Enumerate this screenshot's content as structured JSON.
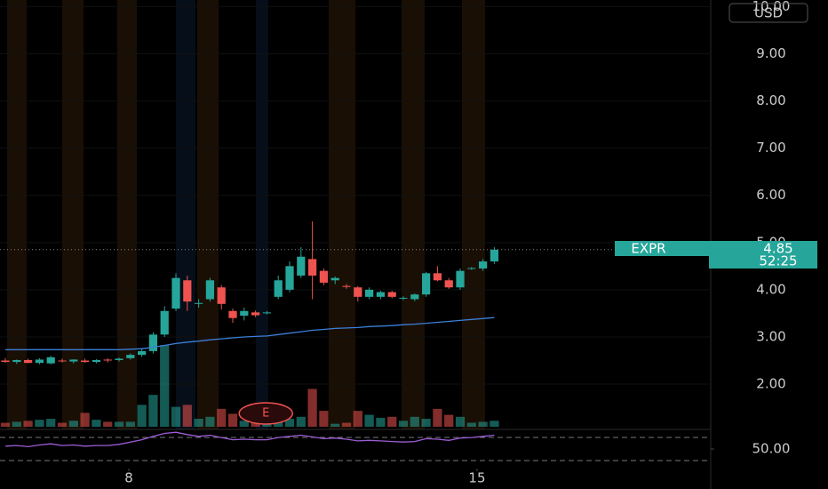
{
  "chart_data": {
    "type": "candlestick",
    "currency": "USD",
    "symbol": "EXPR",
    "last_price": 4.85,
    "countdown": "52:25",
    "event_marker": "E",
    "up_color": "#26a69a",
    "down_color": "#ef5350",
    "ma_color": "#3d7fd9",
    "rsi_color": "#9c5dd6",
    "ylim": [
      1.04,
      10.14
    ],
    "yticks": [
      {
        "value": 2,
        "label": "2.00"
      },
      {
        "value": 3,
        "label": "3.00"
      },
      {
        "value": 4,
        "label": "4.00"
      },
      {
        "value": 5,
        "label": "5.00"
      },
      {
        "value": 6,
        "label": "6.00"
      },
      {
        "value": 7,
        "label": "7.00"
      },
      {
        "value": 8,
        "label": "8.00"
      },
      {
        "value": 9,
        "label": "9.00"
      },
      {
        "value": 10,
        "label": "10.00"
      }
    ],
    "xlim": [
      -0.47,
      62.03
    ],
    "xticks": [
      {
        "value": 10.86,
        "label": "8"
      },
      {
        "value": 41.48,
        "label": "15"
      }
    ],
    "rsi_lim": [
      16,
      84
    ],
    "rsi_ticks": [
      {
        "value": 50,
        "label": "50.00"
      }
    ],
    "rsi_bands": [
      30,
      70
    ],
    "open": [
      2.5,
      2.47,
      2.51,
      2.45,
      2.44,
      2.5,
      2.48,
      2.5,
      2.47,
      2.52,
      2.51,
      2.55,
      2.62,
      2.7,
      3.05,
      3.6,
      4.2,
      3.7,
      3.8,
      4.05,
      3.55,
      3.45,
      3.52,
      3.5,
      3.85,
      4.0,
      4.3,
      4.65,
      4.4,
      4.2,
      4.08,
      4.05,
      3.85,
      3.85,
      3.95,
      3.82,
      3.8,
      3.9,
      4.35,
      4.2,
      4.05,
      4.45,
      4.45,
      4.6
    ],
    "high": [
      2.55,
      2.52,
      2.54,
      2.55,
      2.6,
      2.54,
      2.53,
      2.54,
      2.53,
      2.55,
      2.56,
      2.65,
      2.75,
      3.1,
      3.65,
      4.35,
      4.3,
      3.8,
      4.25,
      4.1,
      3.6,
      3.62,
      3.56,
      3.55,
      4.3,
      4.6,
      4.9,
      5.45,
      4.45,
      4.28,
      4.12,
      4.08,
      4.05,
      3.98,
      3.98,
      3.86,
      3.92,
      4.38,
      4.5,
      4.25,
      4.45,
      4.48,
      4.65,
      4.9
    ],
    "low": [
      2.45,
      2.43,
      2.44,
      2.42,
      2.42,
      2.46,
      2.44,
      2.45,
      2.44,
      2.46,
      2.48,
      2.52,
      2.58,
      2.65,
      3.0,
      3.55,
      3.55,
      3.62,
      3.75,
      3.58,
      3.3,
      3.35,
      3.42,
      3.48,
      3.8,
      3.95,
      4.25,
      3.8,
      4.1,
      4.12,
      4.02,
      3.75,
      3.8,
      3.8,
      3.82,
      3.78,
      3.76,
      3.85,
      4.18,
      4.02,
      4.0,
      4.42,
      4.4,
      4.55
    ],
    "close": [
      2.47,
      2.51,
      2.45,
      2.52,
      2.57,
      2.49,
      2.52,
      2.47,
      2.51,
      2.5,
      2.54,
      2.62,
      2.7,
      3.05,
      3.55,
      4.25,
      3.75,
      3.72,
      4.2,
      3.7,
      3.4,
      3.55,
      3.46,
      3.52,
      4.2,
      4.5,
      4.7,
      4.3,
      4.15,
      4.25,
      4.06,
      3.85,
      4.0,
      3.95,
      3.85,
      3.83,
      3.9,
      4.35,
      4.2,
      4.05,
      4.4,
      4.46,
      4.6,
      4.85
    ],
    "volume": [
      4,
      5,
      6,
      7,
      8,
      4,
      6,
      14,
      7,
      5,
      5,
      5,
      22,
      32,
      82,
      20,
      22,
      8,
      10,
      18,
      13,
      6,
      7,
      5,
      6,
      8,
      10,
      38,
      16,
      3,
      4,
      16,
      12,
      9,
      10,
      6,
      10,
      8,
      18,
      12,
      10,
      4,
      5,
      6
    ],
    "ma": [
      2.73,
      2.73,
      2.73,
      2.73,
      2.73,
      2.73,
      2.73,
      2.73,
      2.73,
      2.73,
      2.73,
      2.74,
      2.75,
      2.78,
      2.82,
      2.86,
      2.89,
      2.91,
      2.94,
      2.96,
      2.98,
      3.0,
      3.01,
      3.02,
      3.05,
      3.08,
      3.11,
      3.14,
      3.16,
      3.18,
      3.19,
      3.2,
      3.22,
      3.23,
      3.24,
      3.26,
      3.27,
      3.29,
      3.31,
      3.33,
      3.35,
      3.37,
      3.39,
      3.41
    ],
    "rsi": [
      55,
      56,
      54,
      57,
      59,
      56,
      57,
      55,
      56,
      56,
      58,
      62,
      66,
      72,
      77,
      79,
      75,
      72,
      74,
      70,
      66,
      67,
      66,
      66,
      70,
      72,
      74,
      71,
      68,
      69,
      67,
      64,
      65,
      64,
      63,
      62,
      63,
      68,
      67,
      65,
      69,
      70,
      72,
      74
    ]
  }
}
